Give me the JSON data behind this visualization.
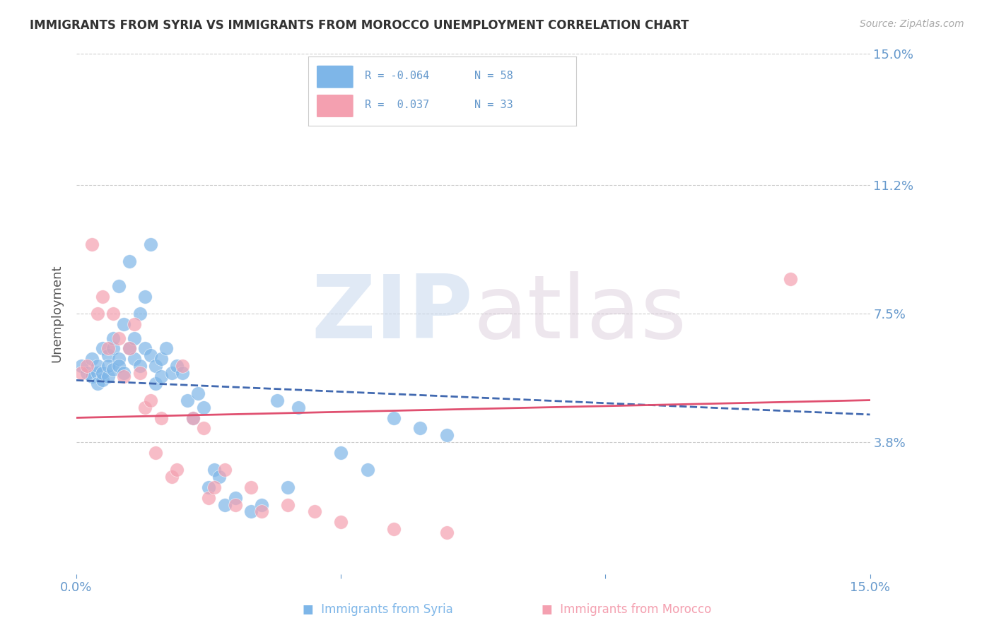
{
  "title": "IMMIGRANTS FROM SYRIA VS IMMIGRANTS FROM MOROCCO UNEMPLOYMENT CORRELATION CHART",
  "source": "Source: ZipAtlas.com",
  "ylabel": "Unemployment",
  "x_min": 0.0,
  "x_max": 0.15,
  "y_min": 0.0,
  "y_max": 0.15,
  "x_tick_positions": [
    0.0,
    0.05,
    0.1,
    0.15
  ],
  "x_tick_labels": [
    "0.0%",
    "",
    "",
    "15.0%"
  ],
  "y_tick_positions": [
    0.038,
    0.075,
    0.112,
    0.15
  ],
  "y_tick_labels": [
    "3.8%",
    "7.5%",
    "11.2%",
    "15.0%"
  ],
  "watermark_zip": "ZIP",
  "watermark_atlas": "atlas",
  "legend_r_syria": "-0.064",
  "legend_n_syria": "58",
  "legend_r_morocco": "0.037",
  "legend_n_morocco": "33",
  "syria_color": "#7EB6E8",
  "morocco_color": "#F4A0B0",
  "syria_line_color": "#4169B0",
  "morocco_line_color": "#E05070",
  "background_color": "#FFFFFF",
  "grid_color": "#CCCCCC",
  "axis_label_color": "#6699CC",
  "title_color": "#333333",
  "syria_x": [
    0.001,
    0.002,
    0.003,
    0.003,
    0.004,
    0.004,
    0.004,
    0.005,
    0.005,
    0.005,
    0.006,
    0.006,
    0.006,
    0.007,
    0.007,
    0.007,
    0.008,
    0.008,
    0.008,
    0.009,
    0.009,
    0.01,
    0.01,
    0.011,
    0.011,
    0.012,
    0.012,
    0.013,
    0.013,
    0.014,
    0.014,
    0.015,
    0.015,
    0.016,
    0.016,
    0.017,
    0.018,
    0.019,
    0.02,
    0.021,
    0.022,
    0.023,
    0.024,
    0.025,
    0.026,
    0.027,
    0.028,
    0.03,
    0.033,
    0.035,
    0.038,
    0.04,
    0.042,
    0.05,
    0.055,
    0.06,
    0.065,
    0.07
  ],
  "syria_y": [
    0.06,
    0.058,
    0.062,
    0.057,
    0.058,
    0.06,
    0.055,
    0.056,
    0.058,
    0.065,
    0.063,
    0.057,
    0.06,
    0.059,
    0.065,
    0.068,
    0.062,
    0.06,
    0.083,
    0.072,
    0.058,
    0.09,
    0.065,
    0.062,
    0.068,
    0.06,
    0.075,
    0.08,
    0.065,
    0.063,
    0.095,
    0.06,
    0.055,
    0.057,
    0.062,
    0.065,
    0.058,
    0.06,
    0.058,
    0.05,
    0.045,
    0.052,
    0.048,
    0.025,
    0.03,
    0.028,
    0.02,
    0.022,
    0.018,
    0.02,
    0.05,
    0.025,
    0.048,
    0.035,
    0.03,
    0.045,
    0.042,
    0.04
  ],
  "morocco_x": [
    0.001,
    0.002,
    0.003,
    0.004,
    0.005,
    0.006,
    0.007,
    0.008,
    0.009,
    0.01,
    0.011,
    0.012,
    0.013,
    0.014,
    0.015,
    0.016,
    0.018,
    0.019,
    0.02,
    0.022,
    0.024,
    0.025,
    0.026,
    0.028,
    0.03,
    0.033,
    0.035,
    0.04,
    0.045,
    0.05,
    0.06,
    0.07,
    0.135
  ],
  "morocco_y": [
    0.058,
    0.06,
    0.095,
    0.075,
    0.08,
    0.065,
    0.075,
    0.068,
    0.057,
    0.065,
    0.072,
    0.058,
    0.048,
    0.05,
    0.035,
    0.045,
    0.028,
    0.03,
    0.06,
    0.045,
    0.042,
    0.022,
    0.025,
    0.03,
    0.02,
    0.025,
    0.018,
    0.02,
    0.018,
    0.015,
    0.013,
    0.012,
    0.085
  ]
}
